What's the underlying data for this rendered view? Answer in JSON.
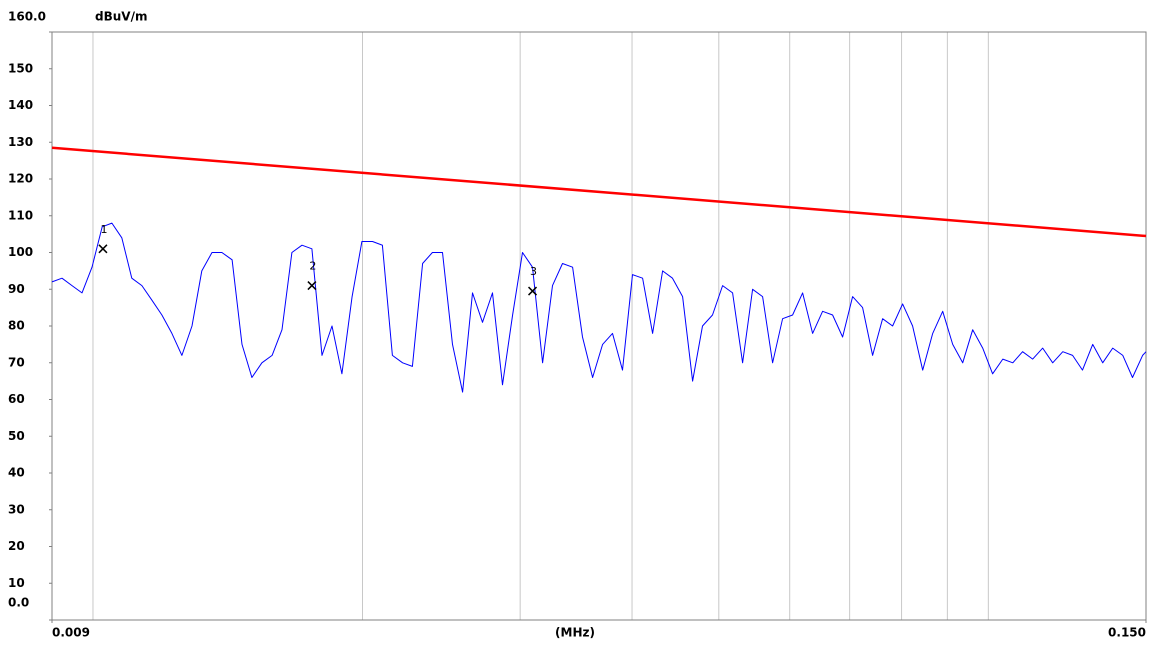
{
  "chart_data": {
    "type": "line",
    "ylabel": "dBuV/m",
    "xlabel": "(MHz)",
    "xscale": "log",
    "xlim": [
      0.009,
      0.15
    ],
    "ylim": [
      0,
      160
    ],
    "xticks": [
      {
        "value": 0.009,
        "label": "0.009"
      },
      {
        "value": 0.15,
        "label": "0.150"
      }
    ],
    "yticks": [
      {
        "value": 0,
        "label": "0.0"
      },
      10,
      20,
      30,
      40,
      50,
      60,
      70,
      80,
      90,
      100,
      110,
      120,
      130,
      140,
      150,
      {
        "value": 160,
        "label": "160.0"
      }
    ],
    "xgrid": [
      0.01,
      0.02,
      0.03,
      0.04,
      0.05,
      0.06,
      0.07,
      0.08,
      0.09,
      0.1
    ],
    "grid": "x",
    "series": [
      {
        "color": "#0000ff",
        "x": [
          0.009,
          0.009235,
          0.009475,
          0.009722,
          0.009975,
          0.01024,
          0.0105,
          0.01077,
          0.01105,
          0.01134,
          0.01164,
          0.01194,
          0.01225,
          0.01257,
          0.0129,
          0.01323,
          0.01358,
          0.01393,
          0.0143,
          0.01467,
          0.01505,
          0.01544,
          0.01585,
          0.01626,
          0.01668,
          0.01712,
          0.01756,
          0.01802,
          0.01849,
          0.01897,
          0.01947,
          0.01997,
          0.02052,
          0.02105,
          0.0216,
          0.02217,
          0.02274,
          0.02334,
          0.02394,
          0.02457,
          0.02521,
          0.02587,
          0.02654,
          0.02723,
          0.02794,
          0.02867,
          0.02942,
          0.03018,
          0.03097,
          0.03178,
          0.0326,
          0.03345,
          0.03433,
          0.03522,
          0.03614,
          0.03708,
          0.03804,
          0.03903,
          0.04005,
          0.0411,
          0.04217,
          0.04327,
          0.04439,
          0.04555,
          0.04674,
          0.04795,
          0.0492,
          0.05049,
          0.0518,
          0.05315,
          0.05454,
          0.05596,
          0.05742,
          0.05891,
          0.06045,
          0.06202,
          0.06364,
          0.0653,
          0.067,
          0.06875,
          0.07054,
          0.07238,
          0.07426,
          0.0762,
          0.07818,
          0.08022,
          0.08231,
          0.08446,
          0.08666,
          0.08892,
          0.09124,
          0.09361,
          0.09605,
          0.09856,
          0.1011,
          0.1038,
          0.1065,
          0.1092,
          0.1121,
          0.115,
          0.118,
          0.1211,
          0.1242,
          0.1274,
          0.1308,
          0.1342,
          0.1377,
          0.1413,
          0.1449,
          0.1487,
          0.15
        ],
        "values": [
          92,
          93,
          91,
          89,
          96,
          107,
          108,
          104,
          93,
          91,
          87,
          83,
          78,
          72,
          80,
          95,
          100,
          100,
          98,
          75,
          66,
          70,
          72,
          79,
          100,
          102,
          101,
          72,
          80,
          67,
          88,
          103,
          103,
          102,
          72,
          70,
          69,
          97,
          100,
          100,
          75,
          62,
          89,
          81,
          89,
          64,
          83,
          100,
          96,
          70,
          91,
          97,
          96,
          77,
          66,
          75,
          78,
          68,
          94,
          93,
          78,
          95,
          93,
          88,
          65,
          80,
          83,
          91,
          89,
          70,
          90,
          88,
          70,
          82,
          83,
          89,
          78,
          84,
          83,
          77,
          88,
          85,
          72,
          82,
          80,
          86,
          80,
          68,
          78,
          84,
          75,
          70,
          79,
          74,
          67,
          71,
          70,
          73,
          71,
          74,
          70,
          73,
          72,
          68,
          75,
          70,
          74,
          72,
          66,
          72,
          73
        ]
      },
      {
        "color": "#ff0000",
        "x": [
          0.009,
          0.15
        ],
        "values": [
          128.5,
          104.5
        ]
      }
    ],
    "markers": [
      {
        "label": "1",
        "x": 0.01026,
        "value": 101
      },
      {
        "label": "2",
        "x": 0.01756,
        "value": 91
      },
      {
        "label": "3",
        "x": 0.03097,
        "value": 89.5
      }
    ]
  }
}
